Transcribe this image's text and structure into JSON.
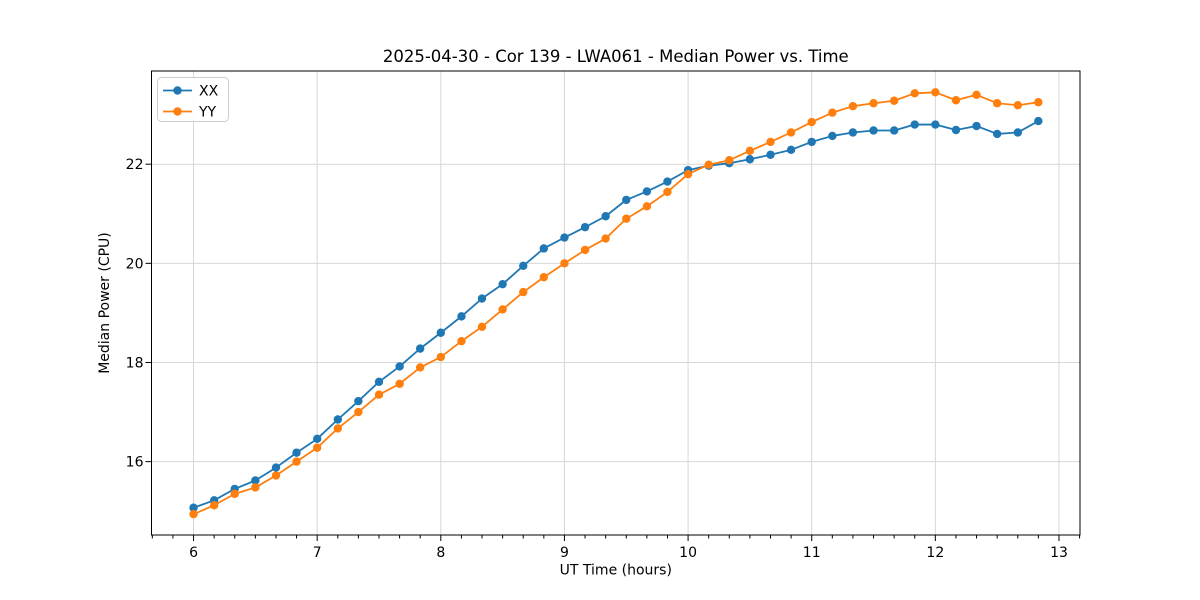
{
  "figure": {
    "background": "#ffffff"
  },
  "chart_data": {
    "type": "line",
    "title": "2025-04-30 - Cor 139 - LWA061 - Median Power vs. Time",
    "xlabel": "UT Time (hours)",
    "ylabel": "Median Power (CPU)",
    "xlim": [
      5.66,
      13.17
    ],
    "ylim": [
      14.52,
      23.88
    ],
    "x_ticks": [
      6,
      7,
      8,
      9,
      10,
      11,
      12,
      13
    ],
    "y_ticks": [
      16,
      18,
      20,
      22
    ],
    "x_minor_ticks_per_hour": 6,
    "grid": true,
    "legend_position": "upper left",
    "marker": "o",
    "x": [
      6.0,
      6.167,
      6.333,
      6.5,
      6.667,
      6.833,
      7.0,
      7.167,
      7.333,
      7.5,
      7.667,
      7.833,
      8.0,
      8.167,
      8.333,
      8.5,
      8.667,
      8.833,
      9.0,
      9.167,
      9.333,
      9.5,
      9.667,
      9.833,
      10.0,
      10.167,
      10.333,
      10.5,
      10.667,
      10.833,
      11.0,
      11.167,
      11.333,
      11.5,
      11.667,
      11.833,
      12.0,
      12.167,
      12.333,
      12.5,
      12.667,
      12.833
    ],
    "series": [
      {
        "name": "XX",
        "color": "#1f77b4",
        "values": [
          15.07,
          15.22,
          15.45,
          15.62,
          15.88,
          16.18,
          16.46,
          16.85,
          17.22,
          17.61,
          17.92,
          18.28,
          18.6,
          18.93,
          19.29,
          19.58,
          19.95,
          20.3,
          20.52,
          20.73,
          20.95,
          21.28,
          21.45,
          21.65,
          21.88,
          21.97,
          22.02,
          22.1,
          22.19,
          22.29,
          22.45,
          22.57,
          22.64,
          22.68,
          22.68,
          22.8,
          22.8,
          22.69,
          22.77,
          22.61,
          22.64,
          22.87
        ]
      },
      {
        "name": "YY",
        "color": "#ff7f0e",
        "values": [
          14.94,
          15.12,
          15.35,
          15.48,
          15.72,
          16.0,
          16.28,
          16.67,
          17.0,
          17.35,
          17.57,
          17.9,
          18.11,
          18.43,
          18.72,
          19.07,
          19.42,
          19.72,
          20.0,
          20.27,
          20.5,
          20.9,
          21.15,
          21.44,
          21.8,
          21.99,
          22.08,
          22.27,
          22.45,
          22.64,
          22.85,
          23.04,
          23.17,
          23.23,
          23.28,
          23.43,
          23.45,
          23.29,
          23.4,
          23.23,
          23.19,
          23.25
        ]
      }
    ],
    "style": {
      "grid_color": "#d7d7d7",
      "spine_color": "#000000",
      "text_color": "#000000"
    }
  }
}
